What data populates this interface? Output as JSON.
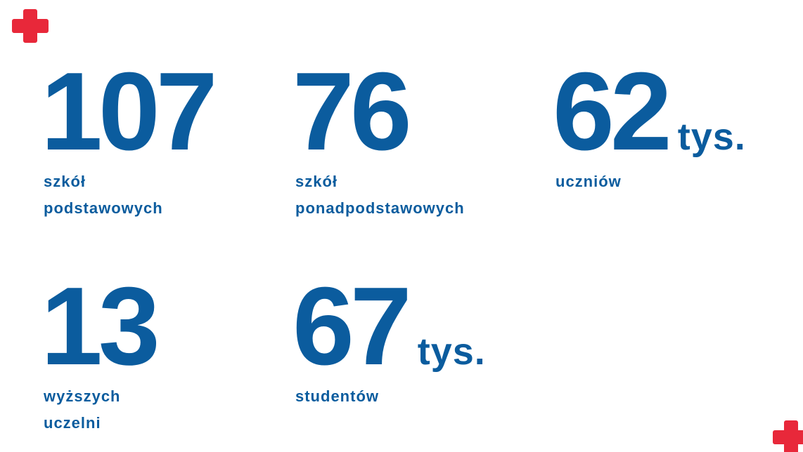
{
  "stats": [
    {
      "value": "107",
      "label": [
        "szkół",
        "podstawowych"
      ]
    },
    {
      "value": "76",
      "label": [
        "szkół",
        "ponadpodstawowych"
      ]
    },
    {
      "value": "62",
      "unit": "tys.",
      "label": [
        "uczniów"
      ]
    },
    {
      "value": "13",
      "label": [
        "wyższych",
        "uczelni"
      ]
    },
    {
      "value": "67",
      "unit": "tys.",
      "label": [
        "studentów"
      ]
    }
  ]
}
